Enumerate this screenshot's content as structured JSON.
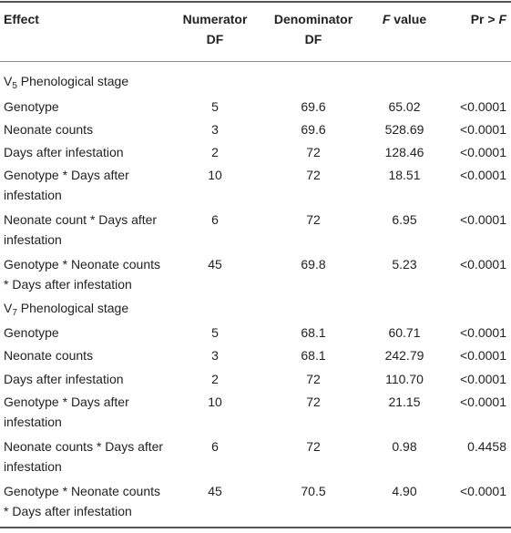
{
  "table": {
    "headers": {
      "effect": "Effect",
      "numerator_line1": "Numerator",
      "numerator_line2": "DF",
      "denominator_line1": "Denominator",
      "denominator_line2": "DF",
      "f_value_italic": "F",
      "f_value_rest": " value",
      "pr_prefix": "Pr > ",
      "pr_italic": "F"
    },
    "sections": [
      {
        "label_prefix": "V",
        "label_sub": "5",
        "label_rest": " Phenological stage",
        "rows": [
          {
            "effect": "Genotype",
            "num_df": "5",
            "den_df": "69.6",
            "f_value": "65.02",
            "p": "<0.0001"
          },
          {
            "effect": "Neonate counts",
            "num_df": "3",
            "den_df": "69.6",
            "f_value": "528.69",
            "p": "<0.0001"
          },
          {
            "effect": "Days after infestation",
            "num_df": "2",
            "den_df": "72",
            "f_value": "128.46",
            "p": "<0.0001"
          },
          {
            "effect_line1": "Genotype * Days after",
            "effect_line2": "infestation",
            "num_df": "10",
            "den_df": "72",
            "f_value": "18.51",
            "p": "<0.0001"
          },
          {
            "effect_line1": "Neonate count * Days after",
            "effect_line2": "infestation",
            "num_df": "6",
            "den_df": "72",
            "f_value": "6.95",
            "p": "<0.0001"
          },
          {
            "effect_line1": "Genotype * Neonate counts",
            "effect_line2": "* Days after infestation",
            "num_df": "45",
            "den_df": "69.8",
            "f_value": "5.23",
            "p": "<0.0001"
          }
        ]
      },
      {
        "label_prefix": "V",
        "label_sub": "7",
        "label_rest": " Phenological stage",
        "rows": [
          {
            "effect": "Genotype",
            "num_df": "5",
            "den_df": "68.1",
            "f_value": "60.71",
            "p": "<0.0001"
          },
          {
            "effect": "Neonate counts",
            "num_df": "3",
            "den_df": "68.1",
            "f_value": "242.79",
            "p": "<0.0001"
          },
          {
            "effect": "Days after infestation",
            "num_df": "2",
            "den_df": "72",
            "f_value": "110.70",
            "p": "<0.0001"
          },
          {
            "effect_line1": "Genotype * Days after",
            "effect_line2": "infestation",
            "num_df": "10",
            "den_df": "72",
            "f_value": "21.15",
            "p": "<0.0001"
          },
          {
            "effect_line1": "Neonate counts * Days after",
            "effect_line2": "infestation",
            "num_df": "6",
            "den_df": "72",
            "f_value": "0.98",
            "p": "0.4458"
          },
          {
            "effect_line1": "Genotype * Neonate counts",
            "effect_line2": "* Days after infestation",
            "num_df": "45",
            "den_df": "70.5",
            "f_value": "4.90",
            "p": "<0.0001"
          }
        ]
      }
    ]
  }
}
